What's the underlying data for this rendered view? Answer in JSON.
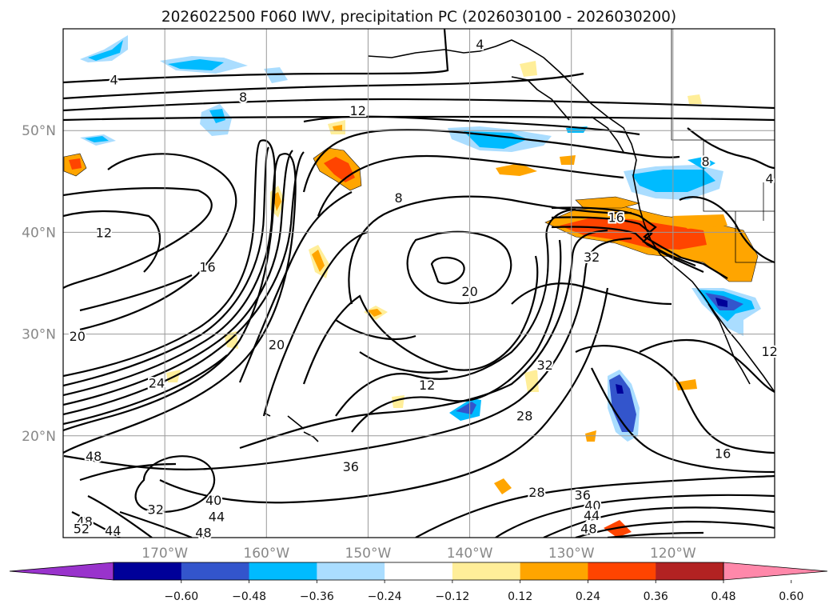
{
  "chart_data": {
    "type": "contour",
    "title": "2026022500 F060 IWV, precipitation PC (2026030100 - 2026030200)",
    "projection": "lat-lon map, North Pacific",
    "extent": {
      "lon": [
        180,
        110
      ],
      "lat": [
        10,
        60
      ]
    },
    "gridlines": true,
    "x_ticks": {
      "values": [
        -170,
        -160,
        -150,
        -140,
        -130,
        -120
      ],
      "labels": [
        "170°W",
        "160°W",
        "150°W",
        "140°W",
        "130°W",
        "120°W"
      ]
    },
    "y_ticks": {
      "values": [
        20,
        30,
        40,
        50
      ],
      "labels": [
        "20°N",
        "30°N",
        "40°N",
        "50°N"
      ]
    },
    "contour_labels": [
      {
        "text": "4",
        "lon": -175,
        "lat": 55
      },
      {
        "text": "4",
        "lon": -139,
        "lat": 58.5
      },
      {
        "text": "8",
        "lon": -162.3,
        "lat": 53.3
      },
      {
        "text": "12",
        "lon": -151,
        "lat": 52
      },
      {
        "text": "8",
        "lon": -147,
        "lat": 43.4
      },
      {
        "text": "8",
        "lon": -116.8,
        "lat": 47
      },
      {
        "text": "12",
        "lon": -176,
        "lat": 40
      },
      {
        "text": "16",
        "lon": -165.8,
        "lat": 36.6
      },
      {
        "text": "20",
        "lon": -178.6,
        "lat": 29.8
      },
      {
        "text": "20",
        "lon": -159,
        "lat": 29
      },
      {
        "text": "20",
        "lon": -140,
        "lat": 34.2
      },
      {
        "text": "16",
        "lon": -125.6,
        "lat": 41.5
      },
      {
        "text": "32",
        "lon": -128,
        "lat": 37.6
      },
      {
        "text": "12",
        "lon": -144.2,
        "lat": 25
      },
      {
        "text": "24",
        "lon": -170.8,
        "lat": 25.2
      },
      {
        "text": "28",
        "lon": -134.6,
        "lat": 22
      },
      {
        "text": "32",
        "lon": -132.6,
        "lat": 27
      },
      {
        "text": "36",
        "lon": -151.7,
        "lat": 17
      },
      {
        "text": "16",
        "lon": -115.1,
        "lat": 18.3
      },
      {
        "text": "48",
        "lon": -177,
        "lat": 18
      },
      {
        "text": "40",
        "lon": -165.2,
        "lat": 13.7
      },
      {
        "text": "32",
        "lon": -170.9,
        "lat": 12.8
      },
      {
        "text": "44",
        "lon": -164.9,
        "lat": 12.1
      },
      {
        "text": "48",
        "lon": -177.9,
        "lat": 11.6
      },
      {
        "text": "52",
        "lon": -178.2,
        "lat": 10.9
      },
      {
        "text": "44",
        "lon": -175.1,
        "lat": 10.7
      },
      {
        "text": "48",
        "lon": -166.2,
        "lat": 10.5
      },
      {
        "text": "28",
        "lon": -133.4,
        "lat": 14.5
      },
      {
        "text": "36",
        "lon": -128.9,
        "lat": 14.2
      },
      {
        "text": "40",
        "lon": -127.9,
        "lat": 13.2
      },
      {
        "text": "44",
        "lon": -128,
        "lat": 12.2
      },
      {
        "text": "48",
        "lon": -128.3,
        "lat": 10.9
      },
      {
        "text": "12",
        "lon": -110.5,
        "lat": 28.3
      },
      {
        "text": "4",
        "lon": -110.5,
        "lat": 45.3
      }
    ],
    "colorbar": {
      "extend": "both",
      "levels": [
        -0.72,
        -0.6,
        -0.48,
        -0.36,
        -0.24,
        -0.12,
        0.12,
        0.24,
        0.36,
        0.48,
        0.6,
        0.72
      ],
      "tick_values": [
        -0.6,
        -0.48,
        -0.36,
        -0.24,
        -0.12,
        0.12,
        0.24,
        0.36,
        0.48,
        0.6
      ],
      "tick_labels": [
        "−0.60",
        "−0.48",
        "−0.36",
        "−0.24",
        "−0.12",
        "0.12",
        "0.24",
        "0.36",
        "0.48",
        "0.60"
      ],
      "colors": [
        "#9933cc",
        "#000099",
        "#3355cc",
        "#00bbff",
        "#aaddff",
        "#ffffff",
        "#ffee99",
        "#ffa500",
        "#ff4400",
        "#b22222",
        "#ff88aa"
      ],
      "under_color": "#9933cc",
      "over_color": "#ff88aa"
    }
  }
}
